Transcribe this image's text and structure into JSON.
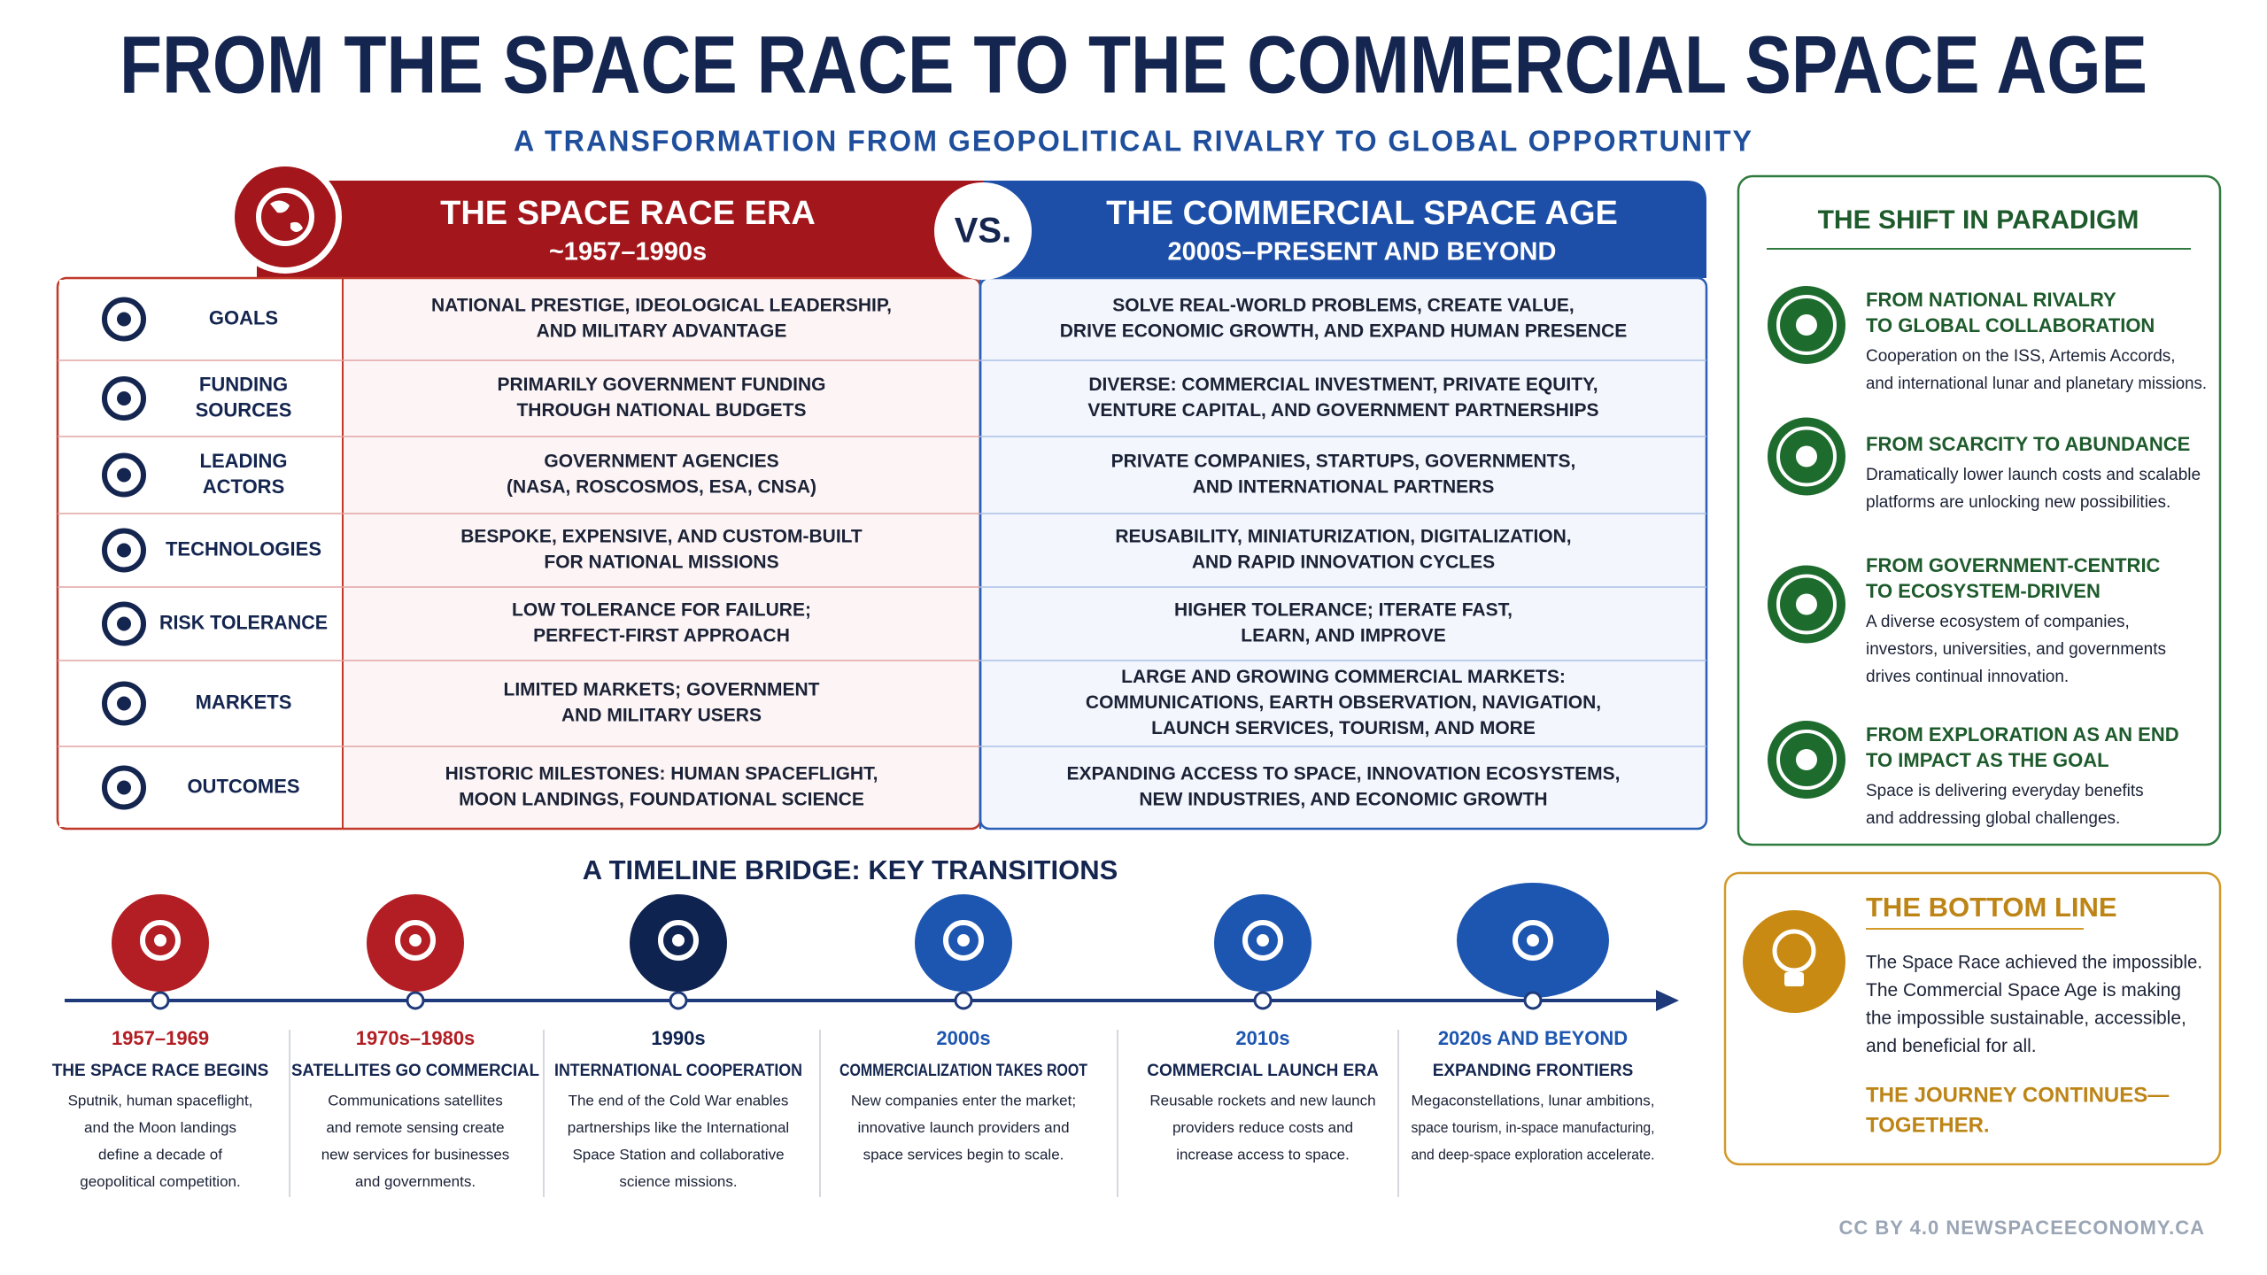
{
  "header": {
    "title": "FROM THE SPACE RACE TO THE COMMERCIAL SPACE AGE",
    "subtitle": "A TRANSFORMATION FROM GEOPOLITICAL RIVALRY TO GLOBAL OPPORTUNITY"
  },
  "comparison": {
    "left": {
      "title": "THE SPACE RACE ERA",
      "period": "~1957–1990s"
    },
    "vs": "VS.",
    "right": {
      "title": "THE COMMERCIAL SPACE AGE",
      "period": "2000S–PRESENT AND BEYOND"
    },
    "rows": [
      {
        "label": [
          "GOALS"
        ],
        "left": [
          "NATIONAL PRESTIGE, IDEOLOGICAL LEADERSHIP,",
          "AND MILITARY ADVANTAGE"
        ],
        "right": [
          "SOLVE REAL-WORLD PROBLEMS, CREATE VALUE,",
          "DRIVE ECONOMIC GROWTH, AND EXPAND HUMAN PRESENCE"
        ]
      },
      {
        "label": [
          "FUNDING",
          "SOURCES"
        ],
        "left": [
          "PRIMARILY GOVERNMENT FUNDING",
          "THROUGH NATIONAL BUDGETS"
        ],
        "right": [
          "DIVERSE: COMMERCIAL INVESTMENT, PRIVATE EQUITY,",
          "VENTURE CAPITAL, AND GOVERNMENT PARTNERSHIPS"
        ]
      },
      {
        "label": [
          "LEADING",
          "ACTORS"
        ],
        "left": [
          "GOVERNMENT AGENCIES",
          "(NASA, ROSCOSMOS, ESA, CNSA)"
        ],
        "right": [
          "PRIVATE COMPANIES, STARTUPS, GOVERNMENTS,",
          "AND INTERNATIONAL PARTNERS"
        ]
      },
      {
        "label": [
          "TECHNOLOGIES"
        ],
        "left": [
          "BESPOKE, EXPENSIVE, AND CUSTOM-BUILT",
          "FOR NATIONAL MISSIONS"
        ],
        "right": [
          "REUSABILITY, MINIATURIZATION, DIGITALIZATION,",
          "AND RAPID INNOVATION CYCLES"
        ]
      },
      {
        "label": [
          "RISK TOLERANCE"
        ],
        "left": [
          "LOW TOLERANCE FOR FAILURE;",
          "PERFECT-FIRST APPROACH"
        ],
        "right": [
          "HIGHER TOLERANCE; ITERATE FAST,",
          "LEARN, AND IMPROVE"
        ]
      },
      {
        "label": [
          "MARKETS"
        ],
        "left": [
          "LIMITED MARKETS; GOVERNMENT",
          "AND MILITARY USERS"
        ],
        "right": [
          "LARGE AND GROWING COMMERCIAL MARKETS:",
          "COMMUNICATIONS, EARTH OBSERVATION, NAVIGATION,",
          "LAUNCH SERVICES, TOURISM, AND MORE"
        ]
      },
      {
        "label": [
          "OUTCOMES"
        ],
        "left": [
          "HISTORIC MILESTONES: HUMAN SPACEFLIGHT,",
          "MOON LANDINGS, FOUNDATIONAL SCIENCE"
        ],
        "right": [
          "EXPANDING ACCESS TO SPACE, INNOVATION ECOSYSTEMS,",
          "NEW INDUSTRIES, AND ECONOMIC GROWTH"
        ]
      }
    ]
  },
  "paradigm": {
    "title": "THE SHIFT IN PARADIGM",
    "items": [
      {
        "title": [
          "FROM NATIONAL RIVALRY",
          "TO GLOBAL COLLABORATION"
        ],
        "desc": [
          "Cooperation on the ISS, Artemis Accords,",
          "and international lunar and planetary missions."
        ]
      },
      {
        "title": [
          "FROM SCARCITY TO ABUNDANCE"
        ],
        "desc": [
          "Dramatically lower launch costs and scalable",
          "platforms are unlocking new possibilities."
        ]
      },
      {
        "title": [
          "FROM GOVERNMENT-CENTRIC",
          "TO ECOSYSTEM-DRIVEN"
        ],
        "desc": [
          "A diverse ecosystem of companies,",
          "investors, universities, and governments",
          "drives continual innovation."
        ]
      },
      {
        "title": [
          "FROM EXPLORATION AS AN END",
          "TO IMPACT AS THE GOAL"
        ],
        "desc": [
          "Space is delivering everyday benefits",
          "and addressing global challenges."
        ]
      }
    ]
  },
  "bottom_line": {
    "title": "THE BOTTOM LINE",
    "body": [
      "The Space Race achieved the impossible.",
      "The Commercial Space Age is making",
      "the impossible sustainable, accessible,",
      "and beneficial for all."
    ],
    "closing": [
      "THE JOURNEY CONTINUES—",
      "TOGETHER."
    ]
  },
  "timeline": {
    "title": "A TIMELINE BRIDGE: KEY TRANSITIONS",
    "items": [
      {
        "date": "1957–1969",
        "heading": "THE SPACE RACE BEGINS",
        "desc": [
          "Sputnik, human spaceflight,",
          "and the Moon landings",
          "define a decade of",
          "geopolitical competition."
        ]
      },
      {
        "date": "1970s–1980s",
        "heading": "SATELLITES GO COMMERCIAL",
        "desc": [
          "Communications satellites",
          "and remote sensing create",
          "new services for businesses",
          "and governments."
        ]
      },
      {
        "date": "1990s",
        "heading": "INTERNATIONAL COOPERATION",
        "desc": [
          "The end of the Cold War enables",
          "partnerships like the International",
          "Space Station and collaborative",
          "science missions."
        ]
      },
      {
        "date": "2000s",
        "heading": "COMMERCIALIZATION TAKES ROOT",
        "desc": [
          "New companies enter the market;",
          "innovative launch providers and",
          "space services begin to scale."
        ]
      },
      {
        "date": "2010s",
        "heading": "COMMERCIAL LAUNCH ERA",
        "desc": [
          "Reusable rockets and new launch",
          "providers reduce costs and",
          "increase access to space."
        ]
      },
      {
        "date": "2020s AND BEYOND",
        "heading": "EXPANDING FRONTIERS",
        "desc": [
          "Megaconstellations, lunar ambitions,",
          "space tourism, in-space manufacturing,",
          "and deep-space exploration accelerate."
        ]
      }
    ]
  },
  "footer": "CC BY 4.0 NEWSPACEECONOMY.CA"
}
